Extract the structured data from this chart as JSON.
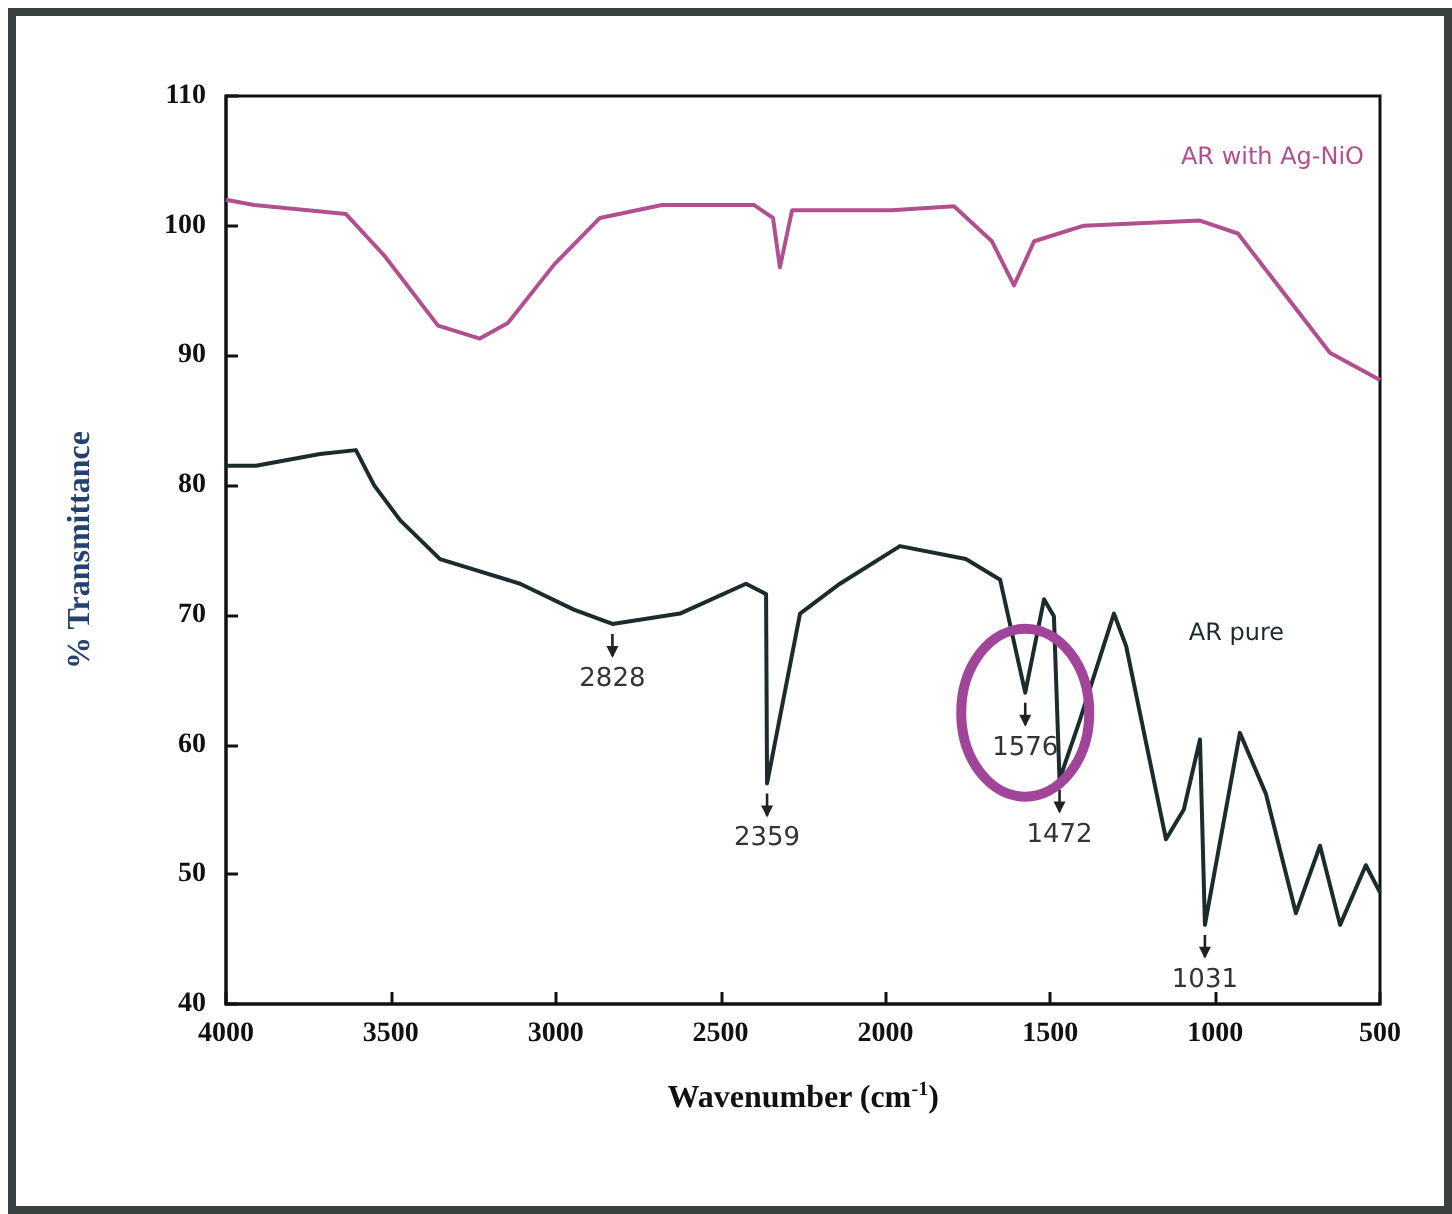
{
  "chart_data": {
    "type": "line",
    "xlabel": "Wavenumber (cm$^{-1}$)",
    "ylabel": "% Transmittance",
    "xlim": [
      4000,
      500
    ],
    "xticks": [
      4000,
      3500,
      3000,
      2500,
      2000,
      1500,
      1000,
      500
    ],
    "ylim": [
      40,
      110
    ],
    "yticks": [
      40,
      50,
      60,
      70,
      80,
      90,
      100,
      110
    ],
    "grid": false,
    "legend": false,
    "marker": "none",
    "line_style": "solid",
    "series": [
      {
        "name": "AR with Ag-NiO",
        "color": "#b0508e",
        "x": [
          4000,
          3915,
          3636,
          3520,
          3357,
          3230,
          3145,
          3005,
          2866,
          2678,
          2399,
          2341,
          2320,
          2283,
          1980,
          1792,
          1677,
          1610,
          1549,
          1398,
          1046,
          931,
          652,
          500
        ],
        "values": [
          102,
          101.6,
          100.9,
          97.7,
          92.3,
          91.3,
          92.5,
          97,
          100.6,
          101.6,
          101.6,
          100.6,
          96.8,
          101.2,
          101.2,
          101.5,
          98.8,
          95.4,
          98.8,
          100,
          100.4,
          99.4,
          90.2,
          88.1
        ]
      },
      {
        "name": "AR pure",
        "color": "#1c2b2b",
        "x": [
          4000,
          3909,
          3715,
          3606,
          3551,
          3472,
          3351,
          3108,
          2945,
          2828,
          2623,
          2423,
          2362,
          2359,
          2259,
          2138,
          1956,
          1756,
          1652,
          1576,
          1519,
          1489,
          1472,
          1410,
          1307,
          1270,
          1149,
          1095,
          1046,
          1031,
          925,
          846,
          755,
          682,
          621,
          543,
          500
        ],
        "values": [
          81.5,
          81.5,
          82.4,
          82.7,
          80,
          77.3,
          74.3,
          72.4,
          70.4,
          69.3,
          70.1,
          72.4,
          71.6,
          57,
          70.1,
          72.4,
          75.3,
          74.3,
          72.7,
          64,
          71.2,
          69.9,
          57.3,
          61.9,
          70.1,
          67.6,
          52.7,
          55,
          60.4,
          46.1,
          60.9,
          56.2,
          47,
          52.2,
          46.1,
          50.7,
          48.6
        ]
      }
    ],
    "annotations": [
      {
        "text": "2828",
        "x": 2828,
        "y": 69.3
      },
      {
        "text": "2359",
        "x": 2359,
        "y": 57
      },
      {
        "text": "1576",
        "x": 1576,
        "y": 64
      },
      {
        "text": "1472",
        "x": 1472,
        "y": 57.3
      },
      {
        "text": "1031",
        "x": 1031,
        "y": 46.1
      }
    ]
  }
}
